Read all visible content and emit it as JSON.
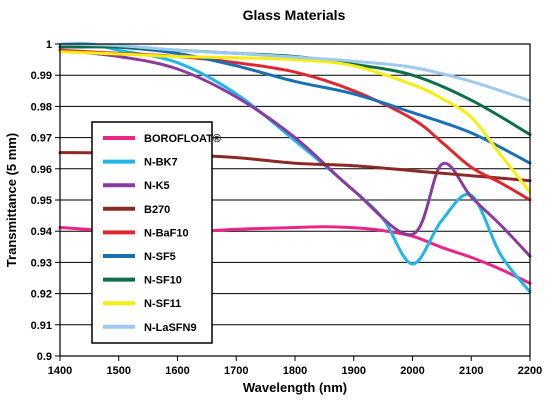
{
  "chart_data": {
    "type": "line",
    "title": "Glass Materials",
    "xlabel": "Wavelength (nm)",
    "ylabel": "Transmittance (5 mm)",
    "xlim": [
      1400,
      2200
    ],
    "ylim": [
      0.9,
      1.0
    ],
    "xticks": [
      1400,
      1500,
      1600,
      1700,
      1800,
      1900,
      2000,
      2100,
      2200
    ],
    "yticks": [
      0.9,
      0.91,
      0.92,
      0.93,
      0.94,
      0.95,
      0.96,
      0.97,
      0.98,
      0.99,
      1.0
    ],
    "ytick_labels": [
      "0.9",
      "0.91",
      "0.92",
      "0.93",
      "0.94",
      "0.95",
      "0.96",
      "0.97",
      "0.98",
      "0.99",
      "1"
    ],
    "grid": "horizontal",
    "legend_position": "left",
    "series": [
      {
        "name": "BOROFLOAT®",
        "color": "#e8268a",
        "x": [
          1400,
          1500,
          1600,
          1700,
          1800,
          1850,
          1900,
          1950,
          2000,
          2050,
          2100,
          2150,
          2200
        ],
        "y": [
          0.9412,
          0.94,
          0.9396,
          0.9406,
          0.9412,
          0.9414,
          0.9411,
          0.9402,
          0.9384,
          0.9348,
          0.9316,
          0.9278,
          0.9233
        ]
      },
      {
        "name": "N-BK7",
        "color": "#1fb6e8",
        "x": [
          1400,
          1450,
          1500,
          1600,
          1700,
          1800,
          1900,
          1950,
          2000,
          2050,
          2100,
          2150,
          2200
        ],
        "y": [
          1.0,
          1.0,
          0.998,
          0.994,
          0.984,
          0.969,
          0.953,
          0.944,
          0.9295,
          0.9435,
          0.9515,
          0.9325,
          0.9205
        ]
      },
      {
        "name": "N-K5",
        "color": "#8b3a9e",
        "x": [
          1400,
          1500,
          1600,
          1700,
          1800,
          1900,
          2000,
          2050,
          2100,
          2150,
          2200
        ],
        "y": [
          0.998,
          0.996,
          0.992,
          0.983,
          0.97,
          0.953,
          0.939,
          0.9615,
          0.951,
          0.942,
          0.932
        ]
      },
      {
        "name": "B270",
        "color": "#8b2a25",
        "x": [
          1400,
          1500,
          1600,
          1700,
          1800,
          1900,
          2000,
          2100,
          2200
        ],
        "y": [
          0.9652,
          0.965,
          0.9645,
          0.9636,
          0.9618,
          0.961,
          0.9594,
          0.9578,
          0.9562
        ]
      },
      {
        "name": "N-BaF10",
        "color": "#e0262e",
        "x": [
          1400,
          1500,
          1600,
          1700,
          1800,
          1900,
          2000,
          2050,
          2100,
          2150,
          2200
        ],
        "y": [
          0.998,
          0.997,
          0.996,
          0.994,
          0.991,
          0.985,
          0.976,
          0.9685,
          0.9605,
          0.9555,
          0.95
        ]
      },
      {
        "name": "N-SF5",
        "color": "#1a6fb5",
        "x": [
          1400,
          1500,
          1600,
          1700,
          1800,
          1900,
          2000,
          2100,
          2200
        ],
        "y": [
          1.0,
          0.999,
          0.997,
          0.993,
          0.988,
          0.984,
          0.978,
          0.9715,
          0.9618
        ]
      },
      {
        "name": "N-SF10",
        "color": "#0f6e4a",
        "x": [
          1400,
          1500,
          1600,
          1700,
          1800,
          1900,
          2000,
          2100,
          2200
        ],
        "y": [
          0.999,
          0.999,
          0.998,
          0.997,
          0.996,
          0.9935,
          0.99,
          0.982,
          0.971
        ]
      },
      {
        "name": "N-SF11",
        "color": "#f6ee10",
        "x": [
          1400,
          1500,
          1600,
          1700,
          1800,
          1900,
          2000,
          2050,
          2100,
          2150,
          2200
        ],
        "y": [
          0.9975,
          0.9968,
          0.996,
          0.9956,
          0.995,
          0.993,
          0.987,
          0.9825,
          0.9765,
          0.9645,
          0.9525
        ]
      },
      {
        "name": "N-LaSFN9",
        "color": "#9dcaee",
        "x": [
          1400,
          1500,
          1600,
          1700,
          1800,
          1900,
          2000,
          2100,
          2200
        ],
        "y": [
          1.0,
          0.9995,
          0.998,
          0.997,
          0.9958,
          0.9945,
          0.9925,
          0.988,
          0.9818
        ]
      }
    ]
  }
}
